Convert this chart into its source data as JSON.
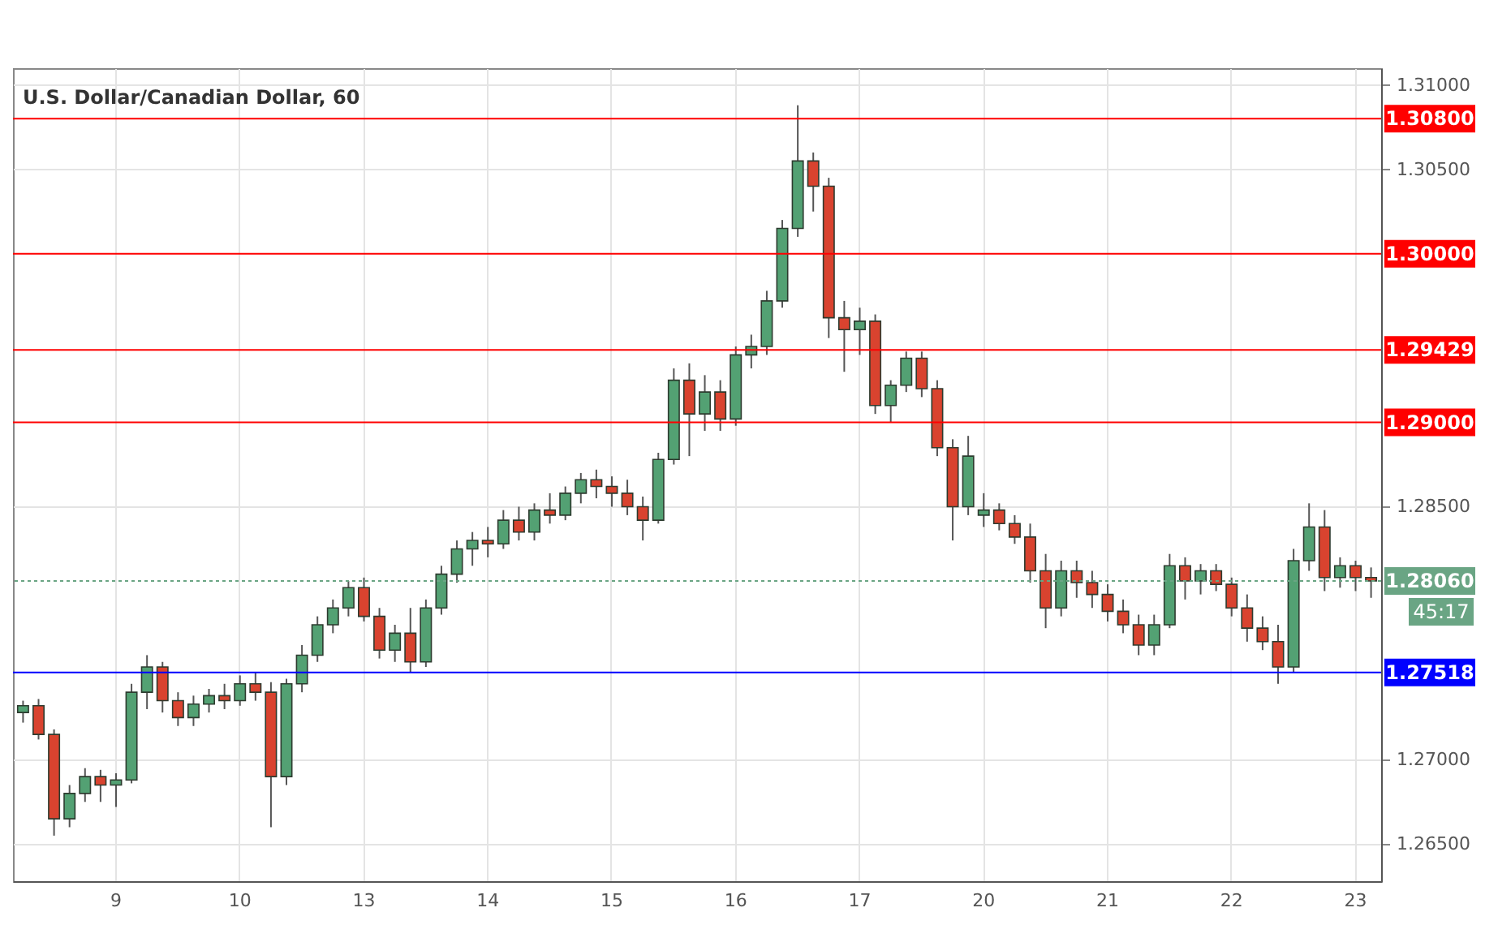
{
  "chart_data": {
    "type": "candlestick",
    "title": "U.S. Dollar/Canadian Dollar, 60",
    "categories": [
      null,
      null,
      null,
      null,
      null,
      null,
      "9",
      null,
      null,
      null,
      null,
      null,
      null,
      null,
      "10",
      null,
      null,
      null,
      null,
      null,
      null,
      null,
      "13",
      null,
      null,
      null,
      null,
      null,
      null,
      null,
      "14",
      null,
      null,
      null,
      null,
      null,
      null,
      null,
      "15",
      null,
      null,
      null,
      null,
      null,
      null,
      null,
      "16",
      null,
      null,
      null,
      null,
      null,
      null,
      null,
      "17",
      null,
      null,
      null,
      null,
      null,
      null,
      null,
      "20",
      null,
      null,
      null,
      null,
      null,
      null,
      null,
      "21",
      null,
      null,
      null,
      null,
      null,
      null,
      null,
      "22",
      null,
      null,
      null,
      null,
      null,
      null,
      null,
      "23",
      null
    ],
    "ohlc": [
      [
        1.2728,
        1.2735,
        1.2722,
        1.2732
      ],
      [
        1.2732,
        1.2736,
        1.2712,
        1.2715
      ],
      [
        1.2715,
        1.2718,
        1.2655,
        1.2665
      ],
      [
        1.2665,
        1.2685,
        1.266,
        1.268
      ],
      [
        1.268,
        1.2695,
        1.2675,
        1.269
      ],
      [
        1.269,
        1.2694,
        1.2675,
        1.2685
      ],
      [
        1.2685,
        1.2692,
        1.2672,
        1.2688
      ],
      [
        1.2688,
        1.2745,
        1.2686,
        1.274
      ],
      [
        1.274,
        1.2762,
        1.273,
        1.2755
      ],
      [
        1.2755,
        1.2758,
        1.2728,
        1.2735
      ],
      [
        1.2735,
        1.274,
        1.272,
        1.2725
      ],
      [
        1.2725,
        1.2738,
        1.272,
        1.2733
      ],
      [
        1.2733,
        1.2742,
        1.2728,
        1.2738
      ],
      [
        1.2738,
        1.2745,
        1.273,
        1.2735
      ],
      [
        1.2735,
        1.275,
        1.2732,
        1.2745
      ],
      [
        1.2745,
        1.2752,
        1.2735,
        1.274
      ],
      [
        1.274,
        1.2746,
        1.266,
        1.269
      ],
      [
        1.269,
        1.2748,
        1.2685,
        1.2745
      ],
      [
        1.2745,
        1.2768,
        1.274,
        1.2762
      ],
      [
        1.2762,
        1.2785,
        1.2758,
        1.278
      ],
      [
        1.278,
        1.2795,
        1.2775,
        1.279
      ],
      [
        1.279,
        1.2806,
        1.2785,
        1.2802
      ],
      [
        1.2802,
        1.2808,
        1.2782,
        1.2785
      ],
      [
        1.2785,
        1.279,
        1.276,
        1.2765
      ],
      [
        1.2765,
        1.278,
        1.2758,
        1.2775
      ],
      [
        1.2775,
        1.279,
        1.2752,
        1.2758
      ],
      [
        1.2758,
        1.2795,
        1.2755,
        1.279
      ],
      [
        1.279,
        1.2815,
        1.2786,
        1.281
      ],
      [
        1.281,
        1.283,
        1.2805,
        1.2825
      ],
      [
        1.2825,
        1.2835,
        1.2815,
        1.283
      ],
      [
        1.283,
        1.2838,
        1.282,
        1.2828
      ],
      [
        1.2828,
        1.2848,
        1.2825,
        1.2842
      ],
      [
        1.2842,
        1.285,
        1.283,
        1.2835
      ],
      [
        1.2835,
        1.2852,
        1.283,
        1.2848
      ],
      [
        1.2848,
        1.2858,
        1.284,
        1.2845
      ],
      [
        1.2845,
        1.2862,
        1.2842,
        1.2858
      ],
      [
        1.2858,
        1.287,
        1.2852,
        1.2866
      ],
      [
        1.2866,
        1.2872,
        1.2855,
        1.2862
      ],
      [
        1.2862,
        1.2868,
        1.285,
        1.2858
      ],
      [
        1.2858,
        1.2866,
        1.2845,
        1.285
      ],
      [
        1.285,
        1.2856,
        1.283,
        1.2842
      ],
      [
        1.2842,
        1.2882,
        1.284,
        1.2878
      ],
      [
        1.2878,
        1.2932,
        1.2875,
        1.2925
      ],
      [
        1.2925,
        1.2935,
        1.288,
        1.2905
      ],
      [
        1.2905,
        1.2928,
        1.2895,
        1.2918
      ],
      [
        1.2918,
        1.2925,
        1.2895,
        1.2902
      ],
      [
        1.2902,
        1.2945,
        1.2898,
        1.294
      ],
      [
        1.294,
        1.2952,
        1.2932,
        1.2945
      ],
      [
        1.2945,
        1.2978,
        1.294,
        1.2972
      ],
      [
        1.2972,
        1.302,
        1.2968,
        1.3015
      ],
      [
        1.3015,
        1.3088,
        1.301,
        1.3055
      ],
      [
        1.3055,
        1.306,
        1.3025,
        1.304
      ],
      [
        1.304,
        1.3045,
        1.295,
        1.2962
      ],
      [
        1.2962,
        1.2972,
        1.293,
        1.2955
      ],
      [
        1.2955,
        1.2968,
        1.294,
        1.296
      ],
      [
        1.296,
        1.2964,
        1.2905,
        1.291
      ],
      [
        1.291,
        1.2925,
        1.29,
        1.2922
      ],
      [
        1.2922,
        1.2942,
        1.2918,
        1.2938
      ],
      [
        1.2938,
        1.2942,
        1.2915,
        1.292
      ],
      [
        1.292,
        1.2925,
        1.288,
        1.2885
      ],
      [
        1.2885,
        1.289,
        1.283,
        1.285
      ],
      [
        1.285,
        1.2892,
        1.2845,
        1.288
      ],
      [
        1.2845,
        1.2858,
        1.2838,
        1.2848
      ],
      [
        1.2848,
        1.2852,
        1.2836,
        1.284
      ],
      [
        1.284,
        1.2845,
        1.2828,
        1.2832
      ],
      [
        1.2832,
        1.284,
        1.2805,
        1.2812
      ],
      [
        1.2812,
        1.2822,
        1.2778,
        1.279
      ],
      [
        1.279,
        1.2818,
        1.2785,
        1.2812
      ],
      [
        1.2812,
        1.2818,
        1.2796,
        1.2805
      ],
      [
        1.2805,
        1.2812,
        1.279,
        1.2798
      ],
      [
        1.2798,
        1.2804,
        1.2782,
        1.2788
      ],
      [
        1.2788,
        1.2795,
        1.2775,
        1.278
      ],
      [
        1.278,
        1.2786,
        1.2762,
        1.2768
      ],
      [
        1.2768,
        1.2786,
        1.2762,
        1.278
      ],
      [
        1.278,
        1.2822,
        1.2778,
        1.2815
      ],
      [
        1.2815,
        1.282,
        1.2795,
        1.2806
      ],
      [
        1.2806,
        1.2816,
        1.2798,
        1.2812
      ],
      [
        1.2812,
        1.2816,
        1.28,
        1.2804
      ],
      [
        1.2804,
        1.2808,
        1.2785,
        1.279
      ],
      [
        1.279,
        1.2798,
        1.277,
        1.2778
      ],
      [
        1.2778,
        1.2785,
        1.2765,
        1.277
      ],
      [
        1.277,
        1.278,
        1.2745,
        1.2755
      ],
      [
        1.2755,
        1.2825,
        1.2752,
        1.2818
      ],
      [
        1.2818,
        1.2852,
        1.2812,
        1.2838
      ],
      [
        1.2838,
        1.2848,
        1.28,
        1.2808
      ],
      [
        1.2808,
        1.282,
        1.2802,
        1.2815
      ],
      [
        1.2815,
        1.2818,
        1.28,
        1.2808
      ],
      [
        1.2808,
        1.2814,
        1.2796,
        1.2806
      ]
    ],
    "colors": [
      "#53a173",
      "#d9432f",
      "#d9432f",
      "#53a173",
      "#53a173",
      "#d9432f",
      "#53a173",
      "#53a173",
      "#53a173",
      "#d9432f",
      "#d9432f",
      "#53a173",
      "#53a173",
      "#d9432f",
      "#53a173",
      "#d9432f",
      "#d9432f",
      "#53a173",
      "#53a173",
      "#53a173",
      "#53a173",
      "#53a173",
      "#d9432f",
      "#d9432f",
      "#53a173",
      "#d9432f",
      "#53a173",
      "#53a173",
      "#53a173",
      "#53a173",
      "#d9432f",
      "#53a173",
      "#d9432f",
      "#53a173",
      "#d9432f",
      "#53a173",
      "#53a173",
      "#d9432f",
      "#d9432f",
      "#d9432f",
      "#d9432f",
      "#53a173",
      "#53a173",
      "#d9432f",
      "#53a173",
      "#d9432f",
      "#53a173",
      "#53a173",
      "#53a173",
      "#53a173",
      "#53a173",
      "#d9432f",
      "#d9432f",
      "#d9432f",
      "#53a173",
      "#d9432f",
      "#53a173",
      "#53a173",
      "#d9432f",
      "#d9432f",
      "#d9432f",
      "#53a173",
      "#53a173",
      "#d9432f",
      "#d9432f",
      "#d9432f",
      "#d9432f",
      "#53a173",
      "#d9432f",
      "#d9432f",
      "#d9432f",
      "#d9432f",
      "#d9432f",
      "#53a173",
      "#53a173",
      "#d9432f",
      "#53a173",
      "#d9432f",
      "#d9432f",
      "#d9432f",
      "#d9432f",
      "#d9432f",
      "#53a173",
      "#53a173",
      "#d9432f",
      "#53a173",
      "#d9432f",
      "#d9432f"
    ],
    "ylim": [
      1.2628,
      1.311
    ],
    "yticks": [
      {
        "value": 1.265,
        "label": "1.26500"
      },
      {
        "value": 1.27,
        "label": "1.27000"
      },
      {
        "value": 1.285,
        "label": "1.28500"
      },
      {
        "value": 1.305,
        "label": "1.30500"
      },
      {
        "value": 1.31,
        "label": "1.31000"
      }
    ],
    "grid": true,
    "ref_lines": [
      {
        "axis": "y",
        "value": 1.308,
        "label": "1.30800",
        "color": "#ff0000"
      },
      {
        "axis": "y",
        "value": 1.3,
        "label": "1.30000",
        "color": "#ff0000"
      },
      {
        "axis": "y",
        "value": 1.29429,
        "label": "1.29429",
        "color": "#ff0000"
      },
      {
        "axis": "y",
        "value": 1.29,
        "label": "1.29000",
        "color": "#ff0000"
      },
      {
        "axis": "y",
        "value": 1.27518,
        "label": "1.27518",
        "color": "#0000ff"
      },
      {
        "axis": "y",
        "value": 1.2806,
        "label": "1.28060",
        "color": "#6aa584",
        "line_style": "dotted"
      }
    ],
    "annotations": [
      "45:17"
    ]
  }
}
